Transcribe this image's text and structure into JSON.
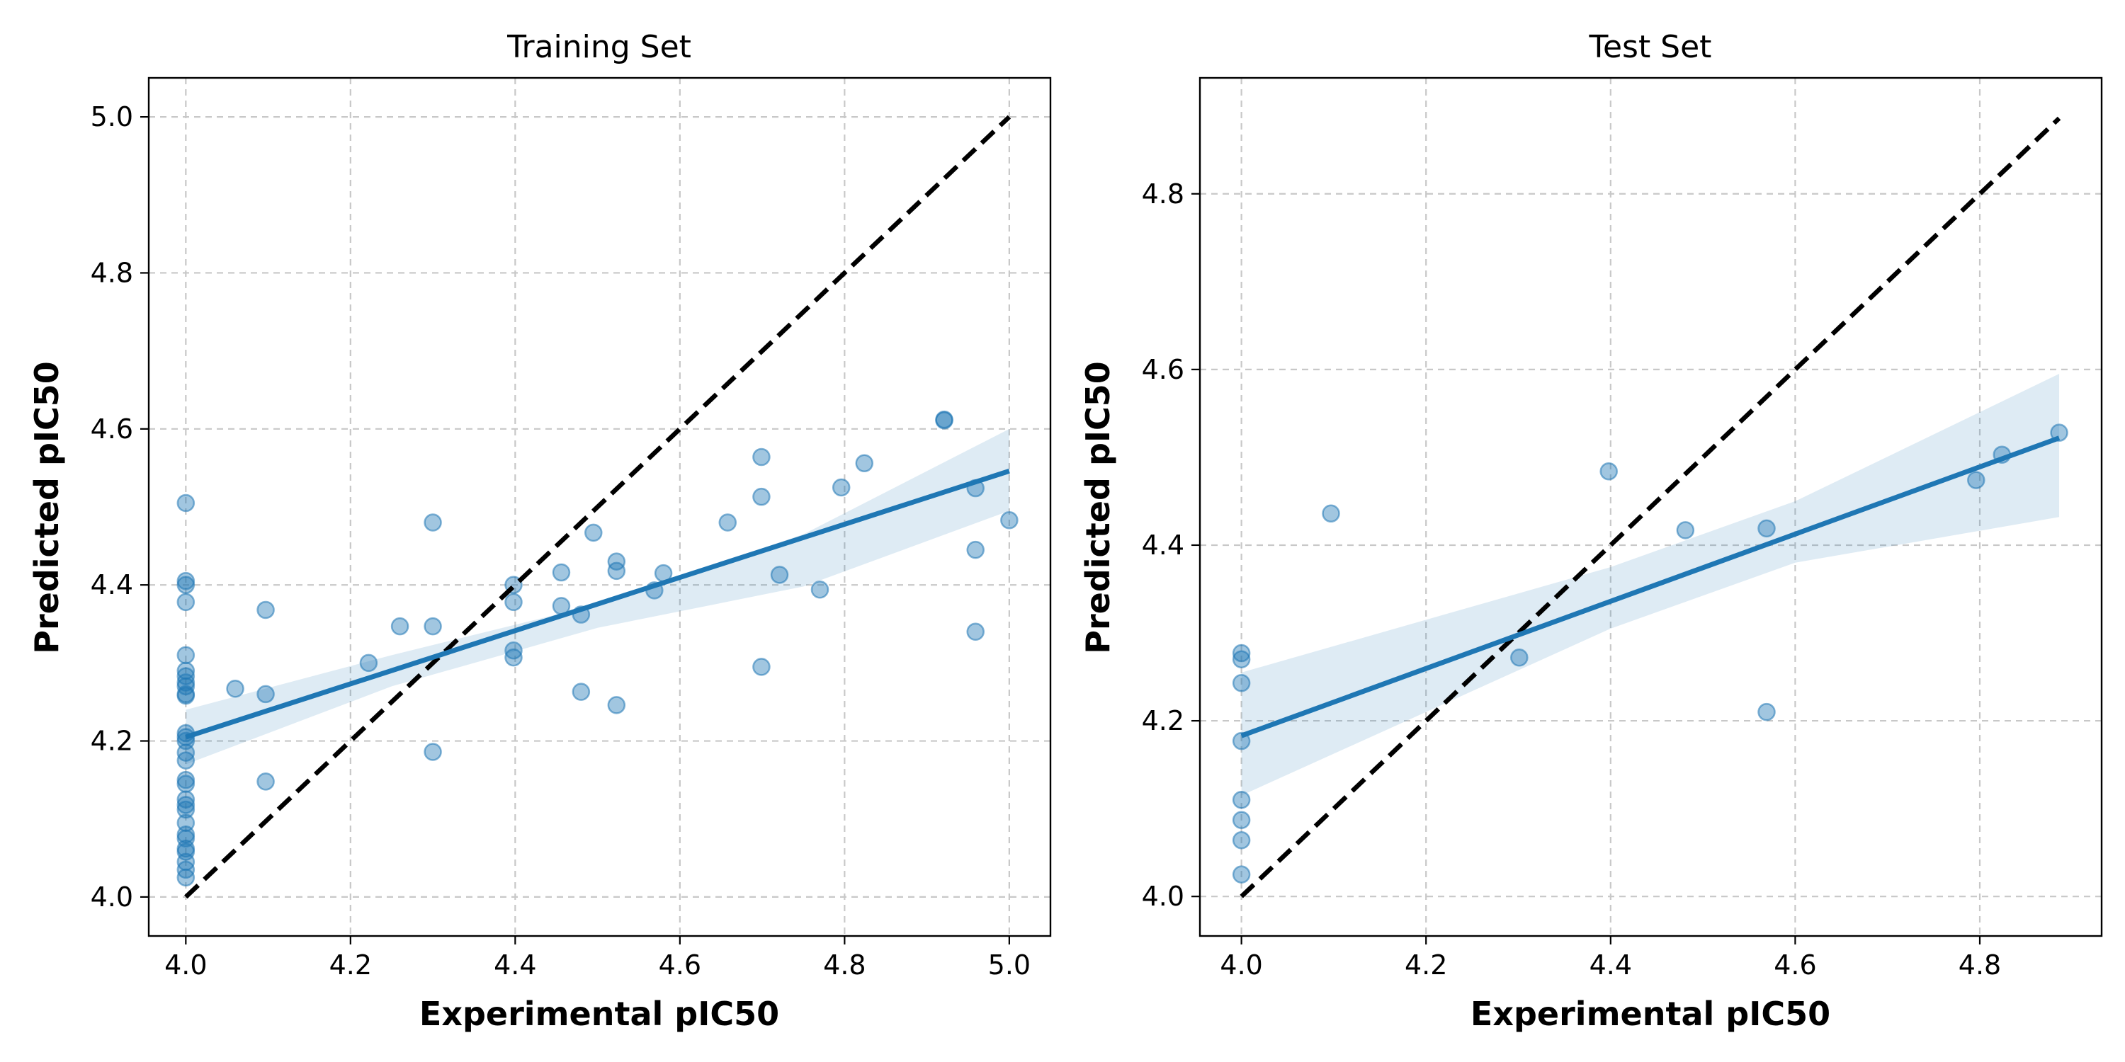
{
  "chart_data": [
    {
      "type": "scatter",
      "title": "Training Set",
      "xlabel": "Experimental pIC50",
      "ylabel": "Predicted pIC50",
      "xlim": [
        3.955,
        5.05
      ],
      "ylim": [
        3.95,
        5.05
      ],
      "xticks": [
        "4.0",
        "4.2",
        "4.4",
        "4.6",
        "4.8",
        "5.0"
      ],
      "yticks": [
        "4.0",
        "4.2",
        "4.4",
        "4.6",
        "4.8",
        "5.0"
      ],
      "grid": true,
      "colors": {
        "points": "#1f77b4",
        "fit": "#1f77b4",
        "identity": "#000000"
      },
      "points": [
        [
          4.0,
          4.505
        ],
        [
          4.0,
          4.405
        ],
        [
          4.0,
          4.4
        ],
        [
          4.0,
          4.378
        ],
        [
          4.0,
          4.31
        ],
        [
          4.0,
          4.29
        ],
        [
          4.0,
          4.283
        ],
        [
          4.0,
          4.275
        ],
        [
          4.0,
          4.27
        ],
        [
          4.0,
          4.26
        ],
        [
          4.0,
          4.258
        ],
        [
          4.0,
          4.21
        ],
        [
          4.0,
          4.205
        ],
        [
          4.0,
          4.2
        ],
        [
          4.0,
          4.185
        ],
        [
          4.0,
          4.175
        ],
        [
          4.0,
          4.15
        ],
        [
          4.0,
          4.145
        ],
        [
          4.0,
          4.125
        ],
        [
          4.0,
          4.118
        ],
        [
          4.0,
          4.112
        ],
        [
          4.0,
          4.095
        ],
        [
          4.0,
          4.08
        ],
        [
          4.0,
          4.075
        ],
        [
          4.0,
          4.062
        ],
        [
          4.0,
          4.058
        ],
        [
          4.0,
          4.045
        ],
        [
          4.0,
          4.035
        ],
        [
          4.0,
          4.025
        ],
        [
          4.06,
          4.267
        ],
        [
          4.097,
          4.368
        ],
        [
          4.097,
          4.26
        ],
        [
          4.097,
          4.148
        ],
        [
          4.222,
          4.3
        ],
        [
          4.26,
          4.347
        ],
        [
          4.3,
          4.48
        ],
        [
          4.3,
          4.347
        ],
        [
          4.3,
          4.186
        ],
        [
          4.398,
          4.4
        ],
        [
          4.398,
          4.378
        ],
        [
          4.398,
          4.316
        ],
        [
          4.398,
          4.307
        ],
        [
          4.456,
          4.416
        ],
        [
          4.456,
          4.373
        ],
        [
          4.48,
          4.362
        ],
        [
          4.48,
          4.263
        ],
        [
          4.495,
          4.467
        ],
        [
          4.523,
          4.43
        ],
        [
          4.523,
          4.418
        ],
        [
          4.523,
          4.246
        ],
        [
          4.569,
          4.393
        ],
        [
          4.58,
          4.415
        ],
        [
          4.658,
          4.48
        ],
        [
          4.699,
          4.564
        ],
        [
          4.699,
          4.513
        ],
        [
          4.699,
          4.295
        ],
        [
          4.721,
          4.413
        ],
        [
          4.77,
          4.394
        ],
        [
          4.796,
          4.525
        ],
        [
          4.824,
          4.556
        ],
        [
          4.921,
          4.611
        ],
        [
          4.921,
          4.612
        ],
        [
          4.959,
          4.524
        ],
        [
          4.959,
          4.445
        ],
        [
          4.959,
          4.34
        ],
        [
          5.0,
          4.483
        ]
      ],
      "identity_line": {
        "from": [
          4.0,
          4.0
        ],
        "to": [
          5.0,
          5.0
        ]
      },
      "fit_line": {
        "x": [
          4.0,
          5.0
        ],
        "y": [
          4.205,
          4.546
        ]
      },
      "confidence_band": {
        "x": [
          4.0,
          4.25,
          4.5,
          4.75,
          5.0
        ],
        "lower": [
          4.17,
          4.27,
          4.345,
          4.398,
          4.495
        ],
        "upper": [
          4.24,
          4.31,
          4.375,
          4.465,
          4.6
        ]
      }
    },
    {
      "type": "scatter",
      "title": "Test Set",
      "xlabel": "Experimental pIC50",
      "ylabel": "Predicted pIC50",
      "xlim": [
        3.955,
        4.932
      ],
      "ylim": [
        3.955,
        4.932
      ],
      "xticks": [
        "4.0",
        "4.2",
        "4.4",
        "4.6",
        "4.8"
      ],
      "yticks": [
        "4.0",
        "4.2",
        "4.4",
        "4.6",
        "4.8"
      ],
      "grid": true,
      "colors": {
        "points": "#1f77b4",
        "fit": "#1f77b4",
        "identity": "#000000"
      },
      "points": [
        [
          4.0,
          4.277
        ],
        [
          4.0,
          4.27
        ],
        [
          4.0,
          4.243
        ],
        [
          4.0,
          4.177
        ],
        [
          4.0,
          4.11
        ],
        [
          4.0,
          4.087
        ],
        [
          4.0,
          4.064
        ],
        [
          4.0,
          4.025
        ],
        [
          4.097,
          4.436
        ],
        [
          4.301,
          4.272
        ],
        [
          4.398,
          4.484
        ],
        [
          4.481,
          4.417
        ],
        [
          4.569,
          4.419
        ],
        [
          4.569,
          4.21
        ],
        [
          4.796,
          4.474
        ],
        [
          4.824,
          4.503
        ],
        [
          4.886,
          4.528
        ]
      ],
      "identity_line": {
        "from": [
          4.0,
          4.0
        ],
        "to": [
          4.886,
          4.886
        ]
      },
      "fit_line": {
        "x": [
          4.0,
          4.886
        ],
        "y": [
          4.183,
          4.522
        ]
      },
      "confidence_band": {
        "x": [
          4.0,
          4.2,
          4.4,
          4.6,
          4.886
        ],
        "lower": [
          4.115,
          4.21,
          4.305,
          4.38,
          4.432
        ],
        "upper": [
          4.255,
          4.315,
          4.375,
          4.45,
          4.595
        ]
      }
    }
  ]
}
